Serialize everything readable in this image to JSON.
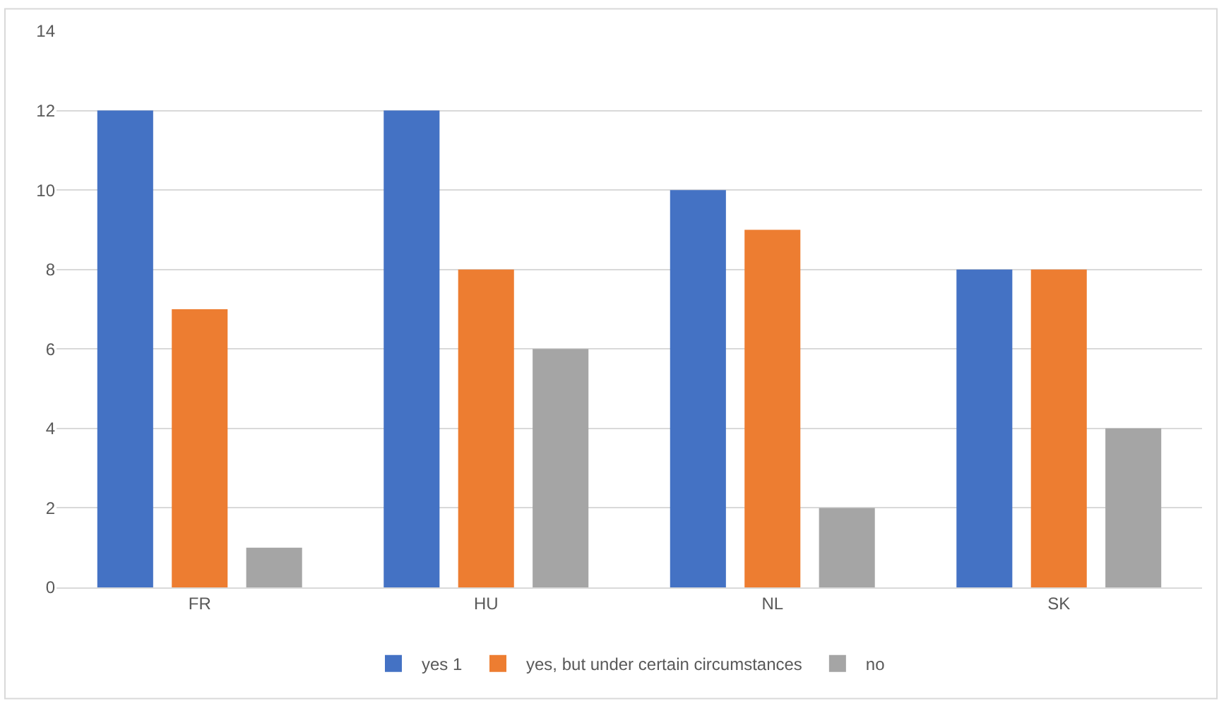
{
  "chart_data": {
    "type": "bar",
    "categories": [
      "FR",
      "HU",
      "NL",
      "SK"
    ],
    "series": [
      {
        "name": "yes 1",
        "color": "#4472c4",
        "values": [
          12,
          12,
          10,
          8
        ]
      },
      {
        "name": "yes, but under certain circumstances",
        "color": "#ed7d31",
        "values": [
          7,
          8,
          9,
          8
        ]
      },
      {
        "name": "no",
        "color": "#a5a5a5",
        "values": [
          1,
          6,
          2,
          4
        ]
      }
    ],
    "ylim": [
      0,
      14
    ],
    "yticks": [
      0,
      2,
      4,
      6,
      8,
      10,
      12,
      14
    ],
    "grid": "y",
    "legend": "bottom"
  }
}
